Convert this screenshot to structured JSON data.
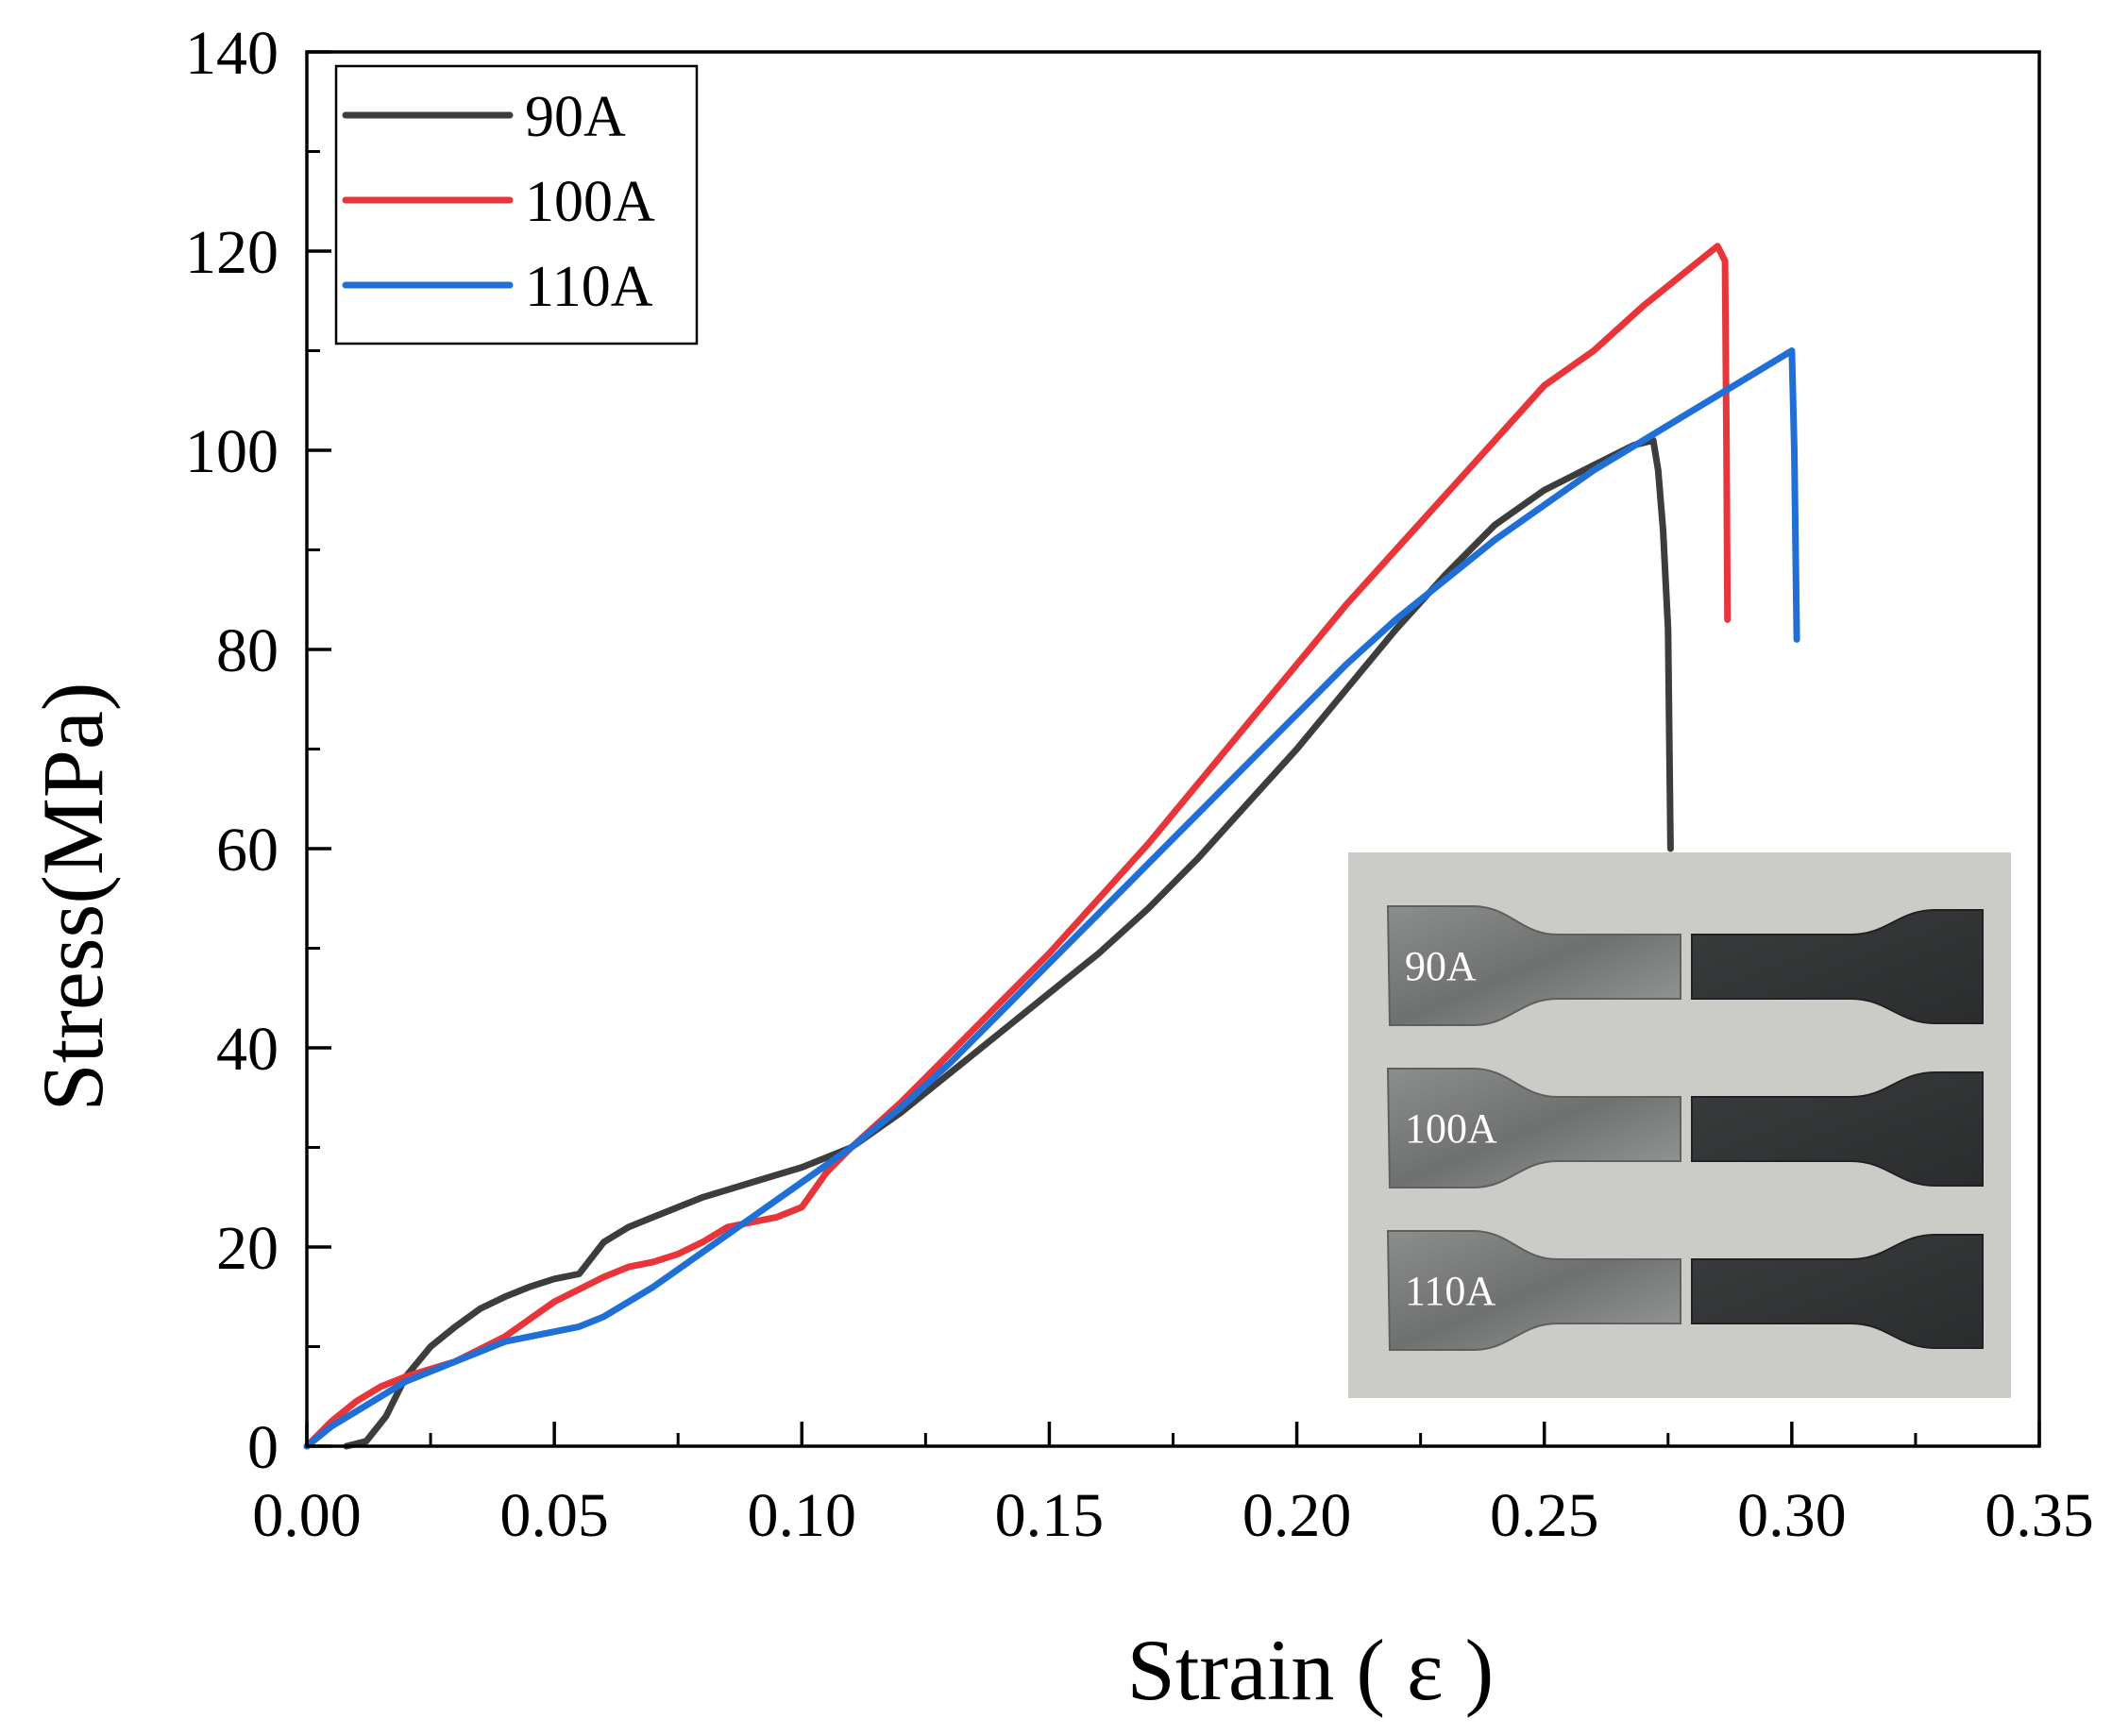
{
  "chart_data": {
    "type": "line",
    "title": "",
    "xlabel": "Strain ( ε )",
    "ylabel": "Stress(MPa)",
    "xlim": [
      0.0,
      0.35
    ],
    "ylim": [
      0,
      140
    ],
    "grid": false,
    "legend_position": "top-left",
    "x_ticks": [
      "0.00",
      "0.05",
      "0.10",
      "0.15",
      "0.20",
      "0.25",
      "0.30",
      "0.35"
    ],
    "y_ticks": [
      "0",
      "20",
      "40",
      "60",
      "80",
      "100",
      "120",
      "140"
    ],
    "series": [
      {
        "name": "90A",
        "color": "#3d3d3d",
        "points": [
          [
            0.008,
            0
          ],
          [
            0.012,
            0.5
          ],
          [
            0.016,
            3
          ],
          [
            0.02,
            7
          ],
          [
            0.025,
            10
          ],
          [
            0.03,
            12
          ],
          [
            0.035,
            13.8
          ],
          [
            0.04,
            15
          ],
          [
            0.045,
            16
          ],
          [
            0.05,
            16.8
          ],
          [
            0.055,
            17.3
          ],
          [
            0.06,
            20.5
          ],
          [
            0.065,
            22
          ],
          [
            0.07,
            23
          ],
          [
            0.075,
            24
          ],
          [
            0.08,
            25
          ],
          [
            0.09,
            26.5
          ],
          [
            0.1,
            28
          ],
          [
            0.11,
            30
          ],
          [
            0.12,
            33.5
          ],
          [
            0.13,
            37.5
          ],
          [
            0.14,
            41.5
          ],
          [
            0.15,
            45.5
          ],
          [
            0.16,
            49.5
          ],
          [
            0.17,
            54
          ],
          [
            0.18,
            59
          ],
          [
            0.19,
            64.5
          ],
          [
            0.2,
            70
          ],
          [
            0.21,
            76
          ],
          [
            0.22,
            82
          ],
          [
            0.23,
            87.5
          ],
          [
            0.24,
            92.5
          ],
          [
            0.25,
            96
          ],
          [
            0.26,
            98.5
          ],
          [
            0.268,
            100.5
          ],
          [
            0.272,
            101
          ],
          [
            0.273,
            98
          ],
          [
            0.274,
            92
          ],
          [
            0.275,
            82
          ],
          [
            0.2755,
            60
          ]
        ]
      },
      {
        "name": "100A",
        "color": "#e8353a",
        "points": [
          [
            0.0,
            0
          ],
          [
            0.005,
            2.5
          ],
          [
            0.01,
            4.5
          ],
          [
            0.015,
            6
          ],
          [
            0.02,
            7
          ],
          [
            0.03,
            8.5
          ],
          [
            0.04,
            11
          ],
          [
            0.05,
            14.5
          ],
          [
            0.06,
            17
          ],
          [
            0.065,
            18
          ],
          [
            0.07,
            18.5
          ],
          [
            0.075,
            19.3
          ],
          [
            0.08,
            20.5
          ],
          [
            0.085,
            22
          ],
          [
            0.09,
            22.5
          ],
          [
            0.095,
            23
          ],
          [
            0.1,
            24
          ],
          [
            0.105,
            27.5
          ],
          [
            0.11,
            30
          ],
          [
            0.12,
            34.5
          ],
          [
            0.13,
            39.5
          ],
          [
            0.14,
            44.5
          ],
          [
            0.15,
            49.5
          ],
          [
            0.16,
            55
          ],
          [
            0.17,
            60.5
          ],
          [
            0.18,
            66.5
          ],
          [
            0.19,
            72.5
          ],
          [
            0.2,
            78.5
          ],
          [
            0.21,
            84.5
          ],
          [
            0.22,
            90
          ],
          [
            0.23,
            95.5
          ],
          [
            0.24,
            101
          ],
          [
            0.25,
            106.5
          ],
          [
            0.26,
            110
          ],
          [
            0.27,
            114.5
          ],
          [
            0.28,
            118.5
          ],
          [
            0.285,
            120.5
          ],
          [
            0.2865,
            119
          ],
          [
            0.2868,
            100
          ],
          [
            0.287,
            83
          ]
        ]
      },
      {
        "name": "110A",
        "color": "#1f6fd6",
        "points": [
          [
            0.0,
            0
          ],
          [
            0.005,
            2
          ],
          [
            0.01,
            3.5
          ],
          [
            0.015,
            5
          ],
          [
            0.02,
            6.5
          ],
          [
            0.03,
            8.5
          ],
          [
            0.04,
            10.5
          ],
          [
            0.05,
            11.5
          ],
          [
            0.055,
            12
          ],
          [
            0.06,
            13
          ],
          [
            0.07,
            16
          ],
          [
            0.08,
            19.5
          ],
          [
            0.09,
            23
          ],
          [
            0.1,
            26.5
          ],
          [
            0.11,
            30
          ],
          [
            0.12,
            34
          ],
          [
            0.13,
            38.5
          ],
          [
            0.14,
            43.5
          ],
          [
            0.15,
            48.5
          ],
          [
            0.16,
            53.5
          ],
          [
            0.17,
            58.5
          ],
          [
            0.18,
            63.5
          ],
          [
            0.19,
            68.5
          ],
          [
            0.2,
            73.5
          ],
          [
            0.21,
            78.5
          ],
          [
            0.22,
            83
          ],
          [
            0.23,
            87
          ],
          [
            0.24,
            91
          ],
          [
            0.25,
            94.5
          ],
          [
            0.26,
            98
          ],
          [
            0.27,
            101
          ],
          [
            0.28,
            104
          ],
          [
            0.29,
            107
          ],
          [
            0.3,
            110
          ],
          [
            0.3005,
            100
          ],
          [
            0.301,
            81
          ]
        ]
      }
    ],
    "annotations": [
      {
        "type": "inset-photo",
        "description": "tensile specimens",
        "labels": [
          "90A",
          "100A",
          "110A"
        ]
      }
    ]
  }
}
